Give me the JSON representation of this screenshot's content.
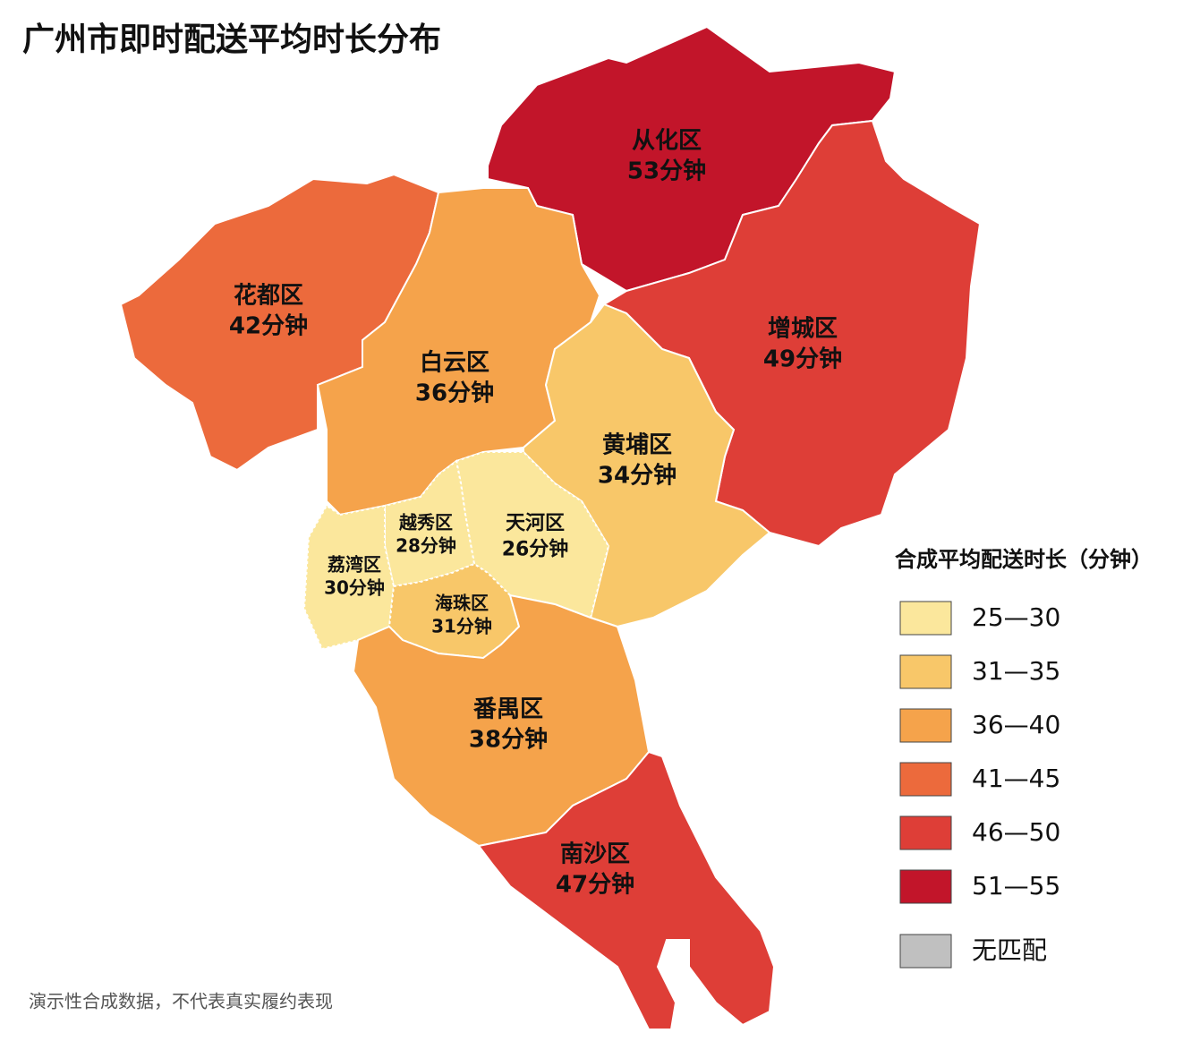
{
  "title": "广州市即时配送平均时长分布",
  "districts": [
    {
      "name": "从化区",
      "value": 53,
      "value_label": "53分钟"
    },
    {
      "name": "花都区",
      "value": 42,
      "value_label": "42分钟"
    },
    {
      "name": "白云区",
      "value": 36,
      "value_label": "36分钟"
    },
    {
      "name": "增城区",
      "value": 49,
      "value_label": "49分钟"
    },
    {
      "name": "黄埔区",
      "value": 34,
      "value_label": "34分钟"
    },
    {
      "name": "天河区",
      "value": 26,
      "value_label": "26分钟"
    },
    {
      "name": "越秀区",
      "value": 28,
      "value_label": "28分钟"
    },
    {
      "name": "荔湾区",
      "value": 30,
      "value_label": "30分钟"
    },
    {
      "name": "海珠区",
      "value": 31,
      "value_label": "31分钟"
    },
    {
      "name": "番禺区",
      "value": 38,
      "value_label": "38分钟"
    },
    {
      "name": "南沙区",
      "value": 47,
      "value_label": "47分钟"
    }
  ],
  "legend": {
    "title": "合成平均配送时长（分钟）",
    "items": [
      {
        "label": "25—30",
        "min": 25,
        "max": 30,
        "color": "#fbe79c"
      },
      {
        "label": "31—35",
        "min": 31,
        "max": 35,
        "color": "#f8c769"
      },
      {
        "label": "36—40",
        "min": 36,
        "max": 40,
        "color": "#f5a34b"
      },
      {
        "label": "41—45",
        "min": 41,
        "max": 45,
        "color": "#ec6a3c"
      },
      {
        "label": "46—50",
        "min": 46,
        "max": 50,
        "color": "#de3e37"
      },
      {
        "label": "51—55",
        "min": 51,
        "max": 55,
        "color": "#c2152a"
      },
      {
        "label": "无匹配",
        "color": "#c0c0c0"
      }
    ]
  },
  "footnote": "演示性合成数据，不代表真实履约表现"
}
